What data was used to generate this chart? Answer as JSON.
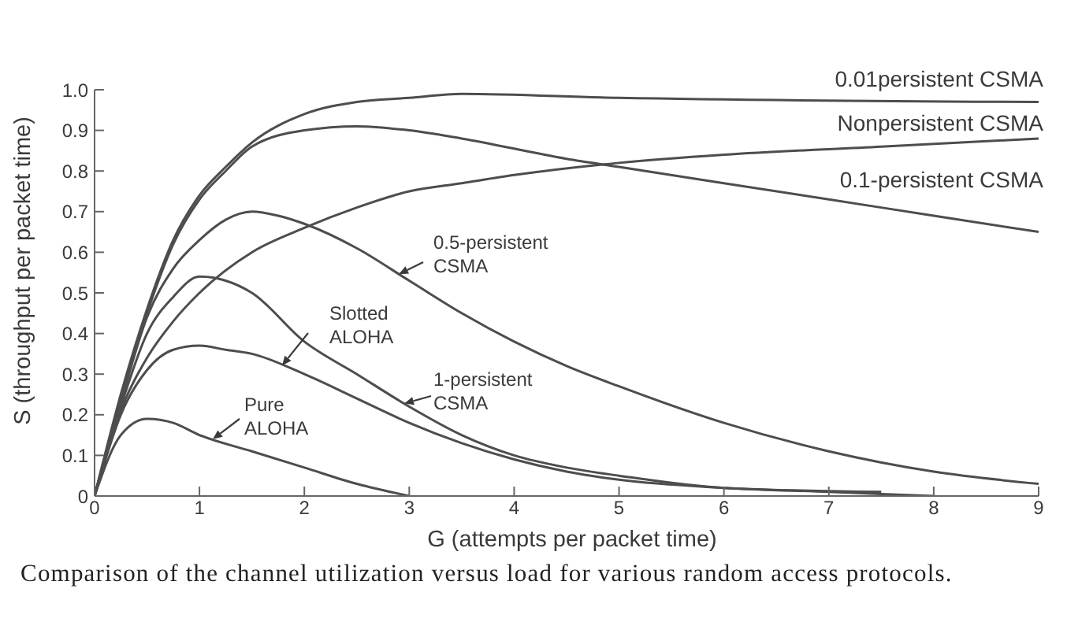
{
  "chart_data": {
    "type": "line",
    "xlabel": "G (attempts per packet time)",
    "ylabel": "S (throughput per packet time)",
    "annotations": [
      "Comparison of the channel utilization versus load for various random access protocols."
    ],
    "xlim": [
      0,
      9
    ],
    "ylim": [
      0,
      1
    ],
    "xticks": [
      0,
      1,
      2,
      3,
      4,
      5,
      6,
      7,
      8,
      9
    ],
    "yticks": [
      0,
      0.1,
      0.2,
      0.3,
      0.4,
      0.5,
      0.6,
      0.7,
      0.8,
      0.9,
      {
        "value": 1,
        "label": "1.0"
      }
    ],
    "marker": "none",
    "series": [
      {
        "name": "0.01persistent CSMA",
        "color": "#4d4d4d",
        "x": [
          0,
          0.25,
          0.5,
          0.75,
          1,
          1.25,
          1.5,
          2,
          2.5,
          3,
          3.5,
          5,
          9
        ],
        "values": [
          0,
          0.25,
          0.46,
          0.63,
          0.74,
          0.81,
          0.87,
          0.94,
          0.97,
          0.98,
          0.99,
          0.98,
          0.97
        ]
      },
      {
        "name": "Nonpersistent CSMA",
        "color": "#4d4d4d",
        "x": [
          0,
          0.25,
          0.5,
          0.75,
          1,
          1.5,
          2,
          2.5,
          3,
          3.5,
          4,
          5,
          6,
          7.5,
          9
        ],
        "values": [
          0,
          0.21,
          0.34,
          0.43,
          0.5,
          0.6,
          0.66,
          0.71,
          0.75,
          0.77,
          0.79,
          0.82,
          0.84,
          0.86,
          0.88
        ]
      },
      {
        "name": "0.1-persistent CSMA",
        "color": "#4d4d4d",
        "x": [
          0,
          0.25,
          0.5,
          0.75,
          1,
          1.25,
          1.5,
          2,
          2.5,
          3,
          3.5,
          4.5,
          5,
          6,
          7,
          8,
          9
        ],
        "values": [
          0,
          0.24,
          0.45,
          0.62,
          0.73,
          0.8,
          0.86,
          0.9,
          0.91,
          0.9,
          0.88,
          0.83,
          0.81,
          0.77,
          0.73,
          0.69,
          0.65
        ]
      },
      {
        "name": "0.5-persistent CSMA",
        "color": "#4d4d4d",
        "x": [
          0,
          0.25,
          0.5,
          0.75,
          1,
          1.25,
          1.5,
          1.75,
          2,
          2.5,
          3,
          3.5,
          4,
          4.5,
          5,
          6,
          7,
          8,
          9
        ],
        "values": [
          0,
          0.23,
          0.44,
          0.56,
          0.63,
          0.68,
          0.7,
          0.69,
          0.67,
          0.61,
          0.53,
          0.45,
          0.38,
          0.32,
          0.27,
          0.18,
          0.11,
          0.06,
          0.03
        ]
      },
      {
        "name": "1-persistent CSMA",
        "color": "#4d4d4d",
        "x": [
          0,
          0.25,
          0.5,
          0.75,
          1,
          1.25,
          1.5,
          2,
          2.5,
          3,
          3.5,
          4,
          4.5,
          5,
          6,
          7.5
        ],
        "values": [
          0,
          0.22,
          0.4,
          0.49,
          0.54,
          0.53,
          0.5,
          0.38,
          0.3,
          0.22,
          0.15,
          0.1,
          0.07,
          0.05,
          0.02,
          0.01
        ]
      },
      {
        "name": "Slotted ALOHA",
        "color": "#4d4d4d",
        "x": [
          0,
          0.25,
          0.5,
          0.75,
          1,
          1.25,
          1.5,
          2,
          2.5,
          3,
          3.5,
          4,
          4.5,
          5,
          6,
          7,
          8
        ],
        "values": [
          0,
          0.2,
          0.31,
          0.36,
          0.37,
          0.36,
          0.35,
          0.3,
          0.24,
          0.18,
          0.13,
          0.09,
          0.06,
          0.04,
          0.02,
          0.01,
          0
        ]
      },
      {
        "name": "Pure ALOHA",
        "color": "#4d4d4d",
        "x": [
          0,
          0.25,
          0.5,
          0.75,
          1,
          1.5,
          2,
          2.5,
          3
        ],
        "values": [
          0,
          0.15,
          0.19,
          0.18,
          0.15,
          0.11,
          0.07,
          0.03,
          0
        ]
      }
    ]
  }
}
